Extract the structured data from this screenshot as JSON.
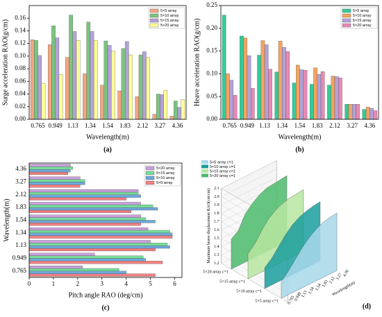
{
  "chart_data": [
    {
      "type": "bar",
      "label": "(a)",
      "xlabel": "Wavelength(m)",
      "ylabel": "Surge acceleration RAO(g/cm)",
      "categories": [
        "0.765",
        "0.949",
        "1.13",
        "1.34",
        "1.54",
        "1.83",
        "2.12",
        "3.27",
        "4.36"
      ],
      "series": [
        {
          "name": "5×5 array",
          "color": "#f4a582",
          "values": [
            0.126,
            0.118,
            0.098,
            0.072,
            0.054,
            0.045,
            0.036,
            0.008,
            0.005
          ]
        },
        {
          "name": "5×10 array",
          "color": "#7cc47f",
          "values": [
            0.125,
            0.148,
            0.165,
            0.154,
            0.124,
            0.112,
            0.102,
            0.04,
            0.029
          ]
        },
        {
          "name": "5×15 array",
          "color": "#b3a2d9",
          "values": [
            0.101,
            0.129,
            0.139,
            0.139,
            0.117,
            0.123,
            0.107,
            0.039,
            0.019
          ]
        },
        {
          "name": "5×20 array",
          "color": "#ffff99",
          "values": [
            0.057,
            0.071,
            0.125,
            0.125,
            0.108,
            0.102,
            0.098,
            0.046,
            0.031
          ]
        }
      ],
      "ylim": [
        0,
        0.18
      ],
      "yticks": [
        {
          "value": 0,
          "label": "0.00"
        },
        {
          "value": 0.02,
          "label": "0.02"
        },
        {
          "value": 0.04,
          "label": "0.04"
        },
        {
          "value": 0.06,
          "label": "0.06"
        },
        {
          "value": 0.08,
          "label": "0.08"
        },
        {
          "value": 0.1,
          "label": "0.10"
        },
        {
          "value": 0.12,
          "label": "0.12"
        },
        {
          "value": 0.14,
          "label": "0.14"
        },
        {
          "value": 0.16,
          "label": "0.16"
        }
      ],
      "legend": "upper right"
    },
    {
      "type": "bar",
      "label": "(b)",
      "xlabel": "Wavelength(m)",
      "ylabel": "Heave acceleration RAO(g/cm)",
      "categories": [
        "0.765",
        "0.949",
        "1.13",
        "1.34",
        "1.54",
        "1.83",
        "2.12",
        "3.27",
        "4.36"
      ],
      "series": [
        {
          "name": "5×5 array",
          "color": "#33cc99",
          "values": [
            0.229,
            0.183,
            0.141,
            0.104,
            0.08,
            0.077,
            0.075,
            0.033,
            0.022
          ]
        },
        {
          "name": "5×10 array",
          "color": "#f4a460",
          "values": [
            0.1,
            0.179,
            0.173,
            0.172,
            0.119,
            0.113,
            0.095,
            0.033,
            0.027
          ]
        },
        {
          "name": "5×15 array",
          "color": "#b3a2d9",
          "values": [
            0.086,
            0.14,
            0.164,
            0.158,
            0.109,
            0.099,
            0.094,
            0.033,
            0.024
          ]
        },
        {
          "name": "5×20 array",
          "color": "#e68ab4",
          "values": [
            0.053,
            0.068,
            0.11,
            0.149,
            0.108,
            0.105,
            0.091,
            0.033,
            0.019
          ]
        }
      ],
      "ylim": [
        0,
        0.25
      ],
      "yticks": [
        {
          "value": 0,
          "label": "0.00"
        },
        {
          "value": 0.05,
          "label": "0.05"
        },
        {
          "value": 0.1,
          "label": "0.10"
        },
        {
          "value": 0.15,
          "label": "0.15"
        },
        {
          "value": 0.2,
          "label": "0.20"
        },
        {
          "value": 0.25,
          "label": "0.25"
        }
      ],
      "legend": "upper right"
    },
    {
      "type": "barh",
      "label": "(c)",
      "xlabel": "Pitch angle RAO (deg/cm)",
      "ylabel": "Wavelength(m)",
      "categories": [
        "0.765",
        "0.949",
        "1.13",
        "1.34",
        "1.54",
        "1.83",
        "2.12",
        "3.27",
        "4.36"
      ],
      "series": [
        {
          "name": "5×5 array",
          "color": "#f08080",
          "values": [
            5.2,
            5.5,
            5.2,
            5.9,
            4.6,
            4.2,
            4.0,
            2.1,
            1.6
          ]
        },
        {
          "name": "5×10 array",
          "color": "#6fa8dc",
          "values": [
            4.0,
            4.8,
            5.8,
            5.9,
            5.2,
            5.3,
            4.6,
            2.3,
            1.7
          ]
        },
        {
          "name": "5×15 array",
          "color": "#77dd99",
          "values": [
            3.7,
            4.7,
            5.7,
            5.8,
            4.8,
            5.1,
            4.5,
            2.3,
            1.8
          ]
        },
        {
          "name": "5×20 array",
          "color": "#c9a0dc",
          "values": [
            2.2,
            2.7,
            5.0,
            4.9,
            4.6,
            4.6,
            4.5,
            2.1,
            1.7
          ]
        }
      ],
      "xlim": [
        0,
        6.3
      ],
      "xticks": [
        0,
        1,
        2,
        3,
        4,
        5,
        6
      ],
      "legend": "upper right"
    },
    {
      "type": "surface3d",
      "label": "(d)",
      "xlabel": "Wavelength(m)",
      "zlabel": "Maximum heave displacement RAO(cm/cm)",
      "categories": [
        "0.765",
        "0.949",
        "1.13",
        "1.34",
        "1.54",
        "1.83",
        "2.12",
        "3.27",
        "4.36"
      ],
      "series": [
        {
          "name": "5×5 array c=1",
          "color": "#a8d8ea",
          "values": [
            1.4,
            1.48,
            1.58,
            1.68,
            1.76,
            1.82,
            1.86,
            1.88,
            1.89
          ]
        },
        {
          "name": "5×10 array c=1",
          "color": "#1a9e9e",
          "values": [
            1.45,
            1.52,
            1.62,
            1.72,
            1.8,
            1.85,
            1.88,
            1.9,
            1.91
          ]
        },
        {
          "name": "5×15 array c=1",
          "color": "#b8e6a0",
          "values": [
            1.5,
            1.58,
            1.7,
            1.8,
            1.86,
            1.9,
            1.92,
            1.93,
            1.94
          ]
        },
        {
          "name": "5×20 array c=1",
          "color": "#4cbb6c",
          "values": [
            1.56,
            1.62,
            1.78,
            1.86,
            1.92,
            1.96,
            1.97,
            1.98,
            1.99
          ]
        }
      ],
      "zlim": [
        1.2,
        2.1
      ],
      "zticks": [
        1.2,
        1.3,
        1.4,
        1.5,
        1.6,
        1.7,
        1.8,
        1.9,
        {
          "value": 2.0,
          "label": "2.0"
        },
        2.1
      ],
      "legend": "upper left"
    }
  ]
}
